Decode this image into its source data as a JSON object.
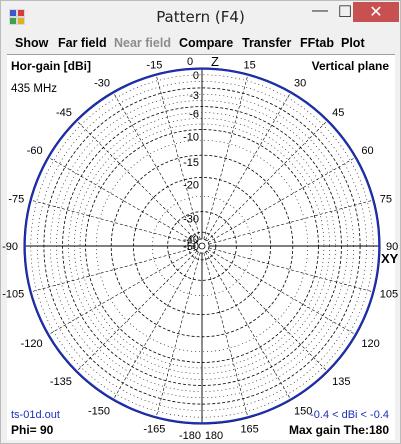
{
  "window": {
    "title": "Pattern   (F4)",
    "controls": {
      "minimize": "—",
      "maximize": "☐",
      "close": "✕"
    },
    "app_icon": "pattern-app-icon"
  },
  "menu": [
    {
      "label": "Show",
      "enabled": true
    },
    {
      "label": "Far field",
      "enabled": true
    },
    {
      "label": "Near field",
      "enabled": false
    },
    {
      "label": "Compare",
      "enabled": true
    },
    {
      "label": "Transfer",
      "enabled": true
    },
    {
      "label": "FFtab",
      "enabled": true
    },
    {
      "label": "Plot",
      "enabled": true
    }
  ],
  "plot": {
    "top_left_label": "Hor-gain [dBi]",
    "top_right_label": "Vertical plane",
    "frequency": "435 MHz",
    "file_name": "ts-01d.out",
    "gain_range": "-0.4 < dBi < -0.4",
    "phi": "Phi= 90",
    "max_gain": "Max gain The:180",
    "axis_z_label": "Z",
    "axis_xy_label": "XY",
    "trace_color": "#1c2fb8",
    "grid_color": "#000000"
  },
  "chart_data": {
    "type": "polar",
    "angle_labels": [
      {
        "angle": 0,
        "label": "0"
      },
      {
        "angle": 15,
        "label": "15"
      },
      {
        "angle": 30,
        "label": "30"
      },
      {
        "angle": 45,
        "label": "45"
      },
      {
        "angle": 60,
        "label": "60"
      },
      {
        "angle": 75,
        "label": "75"
      },
      {
        "angle": 90,
        "label": "90"
      },
      {
        "angle": 105,
        "label": "105"
      },
      {
        "angle": 120,
        "label": "120"
      },
      {
        "angle": 135,
        "label": "135"
      },
      {
        "angle": 150,
        "label": "150"
      },
      {
        "angle": 165,
        "label": "165"
      },
      {
        "angle": 180,
        "label": "180"
      },
      {
        "angle": -15,
        "label": "-15"
      },
      {
        "angle": -30,
        "label": "-30"
      },
      {
        "angle": -45,
        "label": "-45"
      },
      {
        "angle": -60,
        "label": "-60"
      },
      {
        "angle": -75,
        "label": "-75"
      },
      {
        "angle": -90,
        "label": "-90"
      },
      {
        "angle": -105,
        "label": "-105"
      },
      {
        "angle": -120,
        "label": "-120"
      },
      {
        "angle": -135,
        "label": "-135"
      },
      {
        "angle": -150,
        "label": "-150"
      },
      {
        "angle": -165,
        "label": "-165"
      },
      {
        "angle": -180,
        "label": "-180"
      }
    ],
    "radial_ticks_db": [
      0,
      -3,
      -6,
      -10,
      -15,
      -20,
      -30,
      -40,
      -50
    ],
    "radial_range_db": [
      -50,
      0
    ],
    "series": [
      {
        "gain_dbi": -0.4,
        "constant": true
      }
    ],
    "max_gain_db": -0.4
  }
}
